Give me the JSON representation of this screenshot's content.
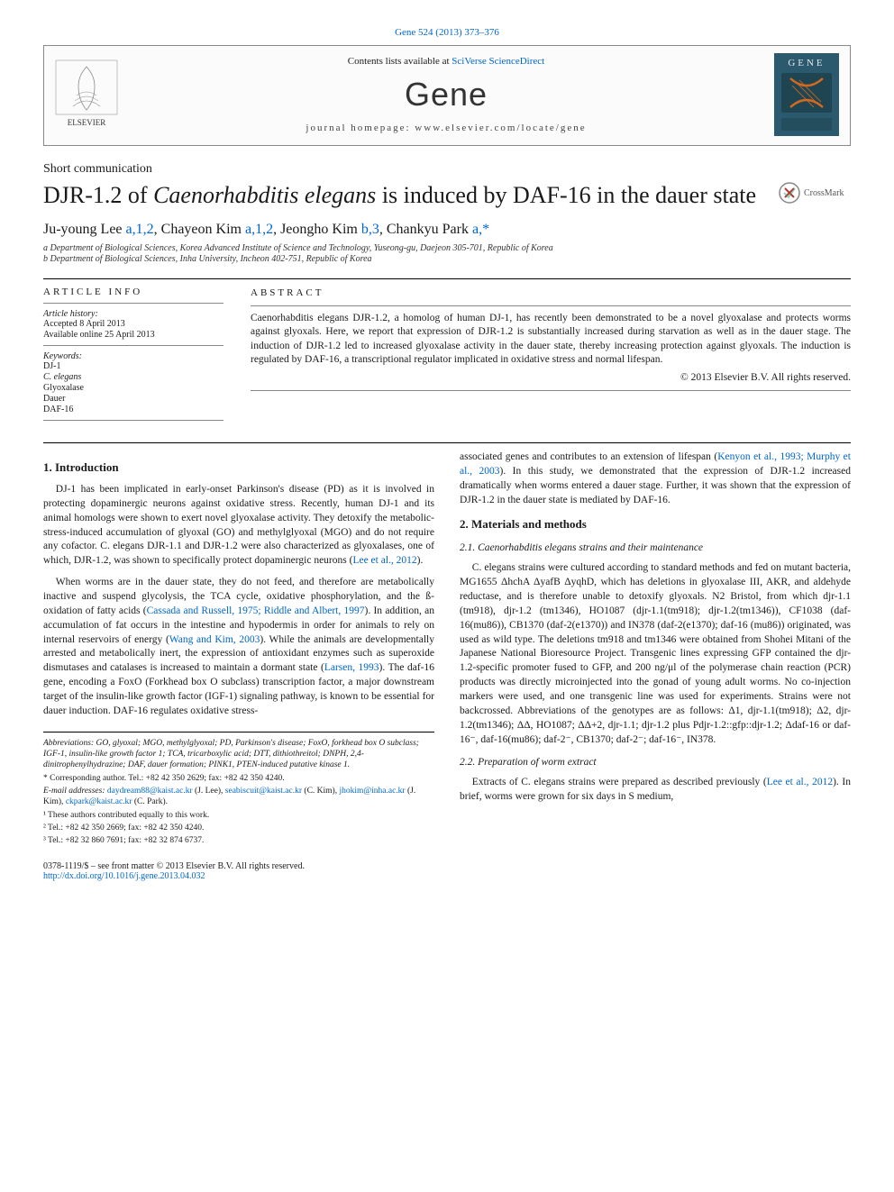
{
  "top_link": {
    "text": "Gene 524 (2013) 373–376",
    "color": "#0066cc"
  },
  "masthead": {
    "contents_prefix": "Contents lists available at ",
    "contents_link": "SciVerse ScienceDirect",
    "journal": "Gene",
    "homepage_label": "journal homepage: www.elsevier.com/locate/gene",
    "publisher_name": "ELSEVIER"
  },
  "article_type": "Short communication",
  "title_html": "DJR-1.2 of <em>Caenorhabditis elegans</em> is induced by DAF-16 in the dauer state",
  "crossmark_label": "CrossMark",
  "authors_html": "Ju-young Lee <a href=\"#\">a,1,2</a>, Chayeon Kim <a href=\"#\">a,1,2</a>, Jeongho Kim <a href=\"#\">b,3</a>, Chankyu Park <a href=\"#\">a,*</a>",
  "affiliations": [
    "a Department of Biological Sciences, Korea Advanced Institute of Science and Technology, Yuseong-gu, Daejeon 305-701, Republic of Korea",
    "b Department of Biological Sciences, Inha University, Incheon 402-751, Republic of Korea"
  ],
  "article_info": {
    "header": "ARTICLE INFO",
    "history_label": "Article history:",
    "history": [
      "Accepted 8 April 2013",
      "Available online 25 April 2013"
    ],
    "keywords_label": "Keywords:",
    "keywords": [
      "DJ-1",
      "C. elegans",
      "Glyoxalase",
      "Dauer",
      "DAF-16"
    ]
  },
  "abstract": {
    "header": "ABSTRACT",
    "text": "Caenorhabditis elegans DJR-1.2, a homolog of human DJ-1, has recently been demonstrated to be a novel glyoxalase and protects worms against glyoxals. Here, we report that expression of DJR-1.2 is substantially increased during starvation as well as in the dauer stage. The induction of DJR-1.2 led to increased glyoxalase activity in the dauer state, thereby increasing protection against glyoxals. The induction is regulated by DAF-16, a transcriptional regulator implicated in oxidative stress and normal lifespan.",
    "copyright": "© 2013 Elsevier B.V. All rights reserved."
  },
  "sections": {
    "intro_heading": "1. Introduction",
    "intro_p1": "DJ-1 has been implicated in early-onset Parkinson's disease (PD) as it is involved in protecting dopaminergic neurons against oxidative stress. Recently, human DJ-1 and its animal homologs were shown to exert novel glyoxalase activity. They detoxify the metabolic-stress-induced accumulation of glyoxal (GO) and methylglyoxal (MGO) and do not require any cofactor. C. elegans DJR-1.1 and DJR-1.2 were also characterized as glyoxalases, one of which, DJR-1.2, was shown to specifically protect dopaminergic neurons (",
    "intro_p1_link": "Lee et al., 2012",
    "intro_p1_end": ").",
    "intro_p2_a": "When worms are in the dauer state, they do not feed, and therefore are metabolically inactive and suspend glycolysis, the TCA cycle, oxidative phosphorylation, and the ß-oxidation of fatty acids (",
    "intro_p2_link1": "Cassada and Russell, 1975; Riddle and Albert, 1997",
    "intro_p2_b": "). In addition, an accumulation of fat occurs in the intestine and hypodermis in order for animals to rely on internal reservoirs of energy (",
    "intro_p2_link2": "Wang and Kim, 2003",
    "intro_p2_c": "). While the animals are developmentally arrested and metabolically inert, the expression of antioxidant enzymes such as superoxide dismutases and catalases is increased to maintain a dormant state (",
    "intro_p2_link3": "Larsen, 1993",
    "intro_p2_d": "). The daf-16 gene, encoding a FoxO (Forkhead box O subclass) transcription factor, a major downstream target of the insulin-like growth factor (IGF-1) signaling pathway, is known to be essential for dauer induction. DAF-16 regulates oxidative stress-",
    "intro_p3_a": "associated genes and contributes to an extension of lifespan (",
    "intro_p3_link": "Kenyon et al., 1993; Murphy et al., 2003",
    "intro_p3_b": "). In this study, we demonstrated that the expression of DJR-1.2 increased dramatically when worms entered a dauer stage. Further, it was shown that the expression of DJR-1.2 in the dauer state is mediated by DAF-16.",
    "mm_heading": "2. Materials and methods",
    "mm_sub1": "2.1. Caenorhabditis elegans strains and their maintenance",
    "mm_p1": "C. elegans strains were cultured according to standard methods and fed on mutant bacteria, MG1655 ΔhchA ΔyafB ΔyqhD, which has deletions in glyoxalase III, AKR, and aldehyde reductase, and is therefore unable to detoxify glyoxals. N2 Bristol, from which djr-1.1 (tm918), djr-1.2 (tm1346), HO1087 (djr-1.1(tm918); djr-1.2(tm1346)), CF1038 (daf-16(mu86)), CB1370 (daf-2(e1370)) and IN378 (daf-2(e1370); daf-16 (mu86)) originated, was used as wild type. The deletions tm918 and tm1346 were obtained from Shohei Mitani of the Japanese National Bioresource Project. Transgenic lines expressing GFP contained the djr-1.2-specific promoter fused to GFP, and 200 ng/μl of the polymerase chain reaction (PCR) products was directly microinjected into the gonad of young adult worms. No co-injection markers were used, and one transgenic line was used for experiments. Strains were not backcrossed. Abbreviations of the genotypes are as follows: Δ1, djr-1.1(tm918); Δ2, djr-1.2(tm1346); ΔΔ, HO1087; ΔΔ+2, djr-1.1; djr-1.2 plus Pdjr-1.2::gfp::djr-1.2; Δdaf-16 or daf-16⁻, daf-16(mu86); daf-2⁻, CB1370; daf-2⁻; daf-16⁻, IN378.",
    "mm_sub2": "2.2. Preparation of worm extract",
    "mm_p2_a": "Extracts of C. elegans strains were prepared as described previously (",
    "mm_p2_link": "Lee et al., 2012",
    "mm_p2_b": "). In brief, worms were grown for six days in S medium,"
  },
  "footnotes": {
    "abbrev": "Abbreviations: GO, glyoxal; MGO, methylglyoxal; PD, Parkinson's disease; FoxO, forkhead box O subclass; IGF-1, insulin-like growth factor 1; TCA, tricarboxylic acid; DTT, dithiothreitol; DNPH, 2,4-dinitrophenylhydrazine; DAF, dauer formation; PINK1, PTEN-induced putative kinase 1.",
    "corresponding": "* Corresponding author. Tel.: +82 42 350 2629; fax: +82 42 350 4240.",
    "emails_prefix": "E-mail addresses: ",
    "emails": [
      {
        "addr": "daydream88@kaist.ac.kr",
        "who": " (J. Lee), "
      },
      {
        "addr": "seabiscuit@kaist.ac.kr",
        "who": " (C. Kim), "
      },
      {
        "addr": "jhokim@inha.ac.kr",
        "who": " (J. Kim), "
      },
      {
        "addr": "ckpark@kaist.ac.kr",
        "who": " (C. Park)."
      }
    ],
    "note1": "¹ These authors contributed equally to this work.",
    "note2": "² Tel.: +82 42 350 2669; fax: +82 42 350 4240.",
    "note3": "³ Tel.: +82 32 860 7691; fax: +82 32 874 6737."
  },
  "bottom": {
    "left1": "0378-1119/$ – see front matter © 2013 Elsevier B.V. All rights reserved.",
    "doi": "http://dx.doi.org/10.1016/j.gene.2013.04.032"
  },
  "colors": {
    "link": "#0066cc",
    "text": "#1a1a1a",
    "rule": "#000000",
    "cover_bg": "#2b5a6e",
    "cover_accent": "#d46a1f"
  }
}
